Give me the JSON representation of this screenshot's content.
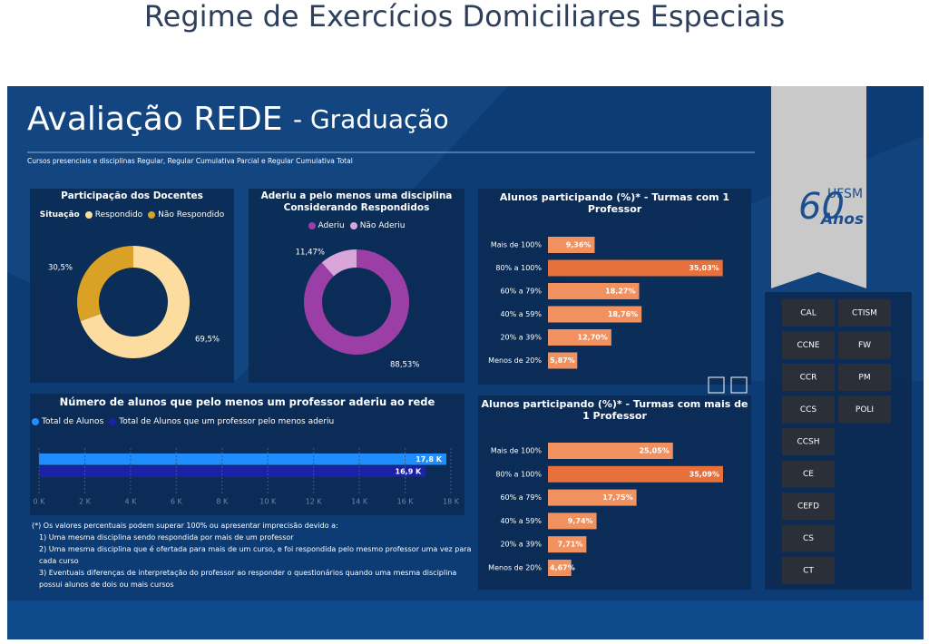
{
  "page_title": "Regime de Exercícios Domiciliares Especiais",
  "dashboard": {
    "title": "Avaliação REDE",
    "title_suffix": "- Graduação",
    "subtitle": "Cursos presenciais e disciplinas Regular, Regular Cumulativa Parcial e Regular Cumulativa Total",
    "logo_text": "UFSM",
    "logo_number": "60",
    "logo_years": "Anos"
  },
  "buttons": [
    "CAL",
    "CTISM",
    "CCNE",
    "FW",
    "CCR",
    "PM",
    "CCS",
    "POLI",
    "CCSH",
    "CE",
    "CEFD",
    "CS",
    "CT"
  ],
  "footnote": [
    "(*) Os valores percentuais podem superar 100% ou apresentar imprecisão devido a:",
    "1) Uma mesma disciplina sendo respondida por mais de um professor",
    "2) Uma mesma disciplina que é ofertada para mais de um curso, e foi respondida pelo mesmo professor uma vez para cada curso",
    "3) Eventuais diferenças de interpretação do professor ao responder o questionários quando uma mesma disciplina possui alunos de dois ou mais cursos"
  ],
  "chart_data": [
    {
      "type": "pie",
      "donut": true,
      "title": "Participação dos Docentes",
      "legend_title": "Situação",
      "categories": [
        "Respondido",
        "Não Respondido"
      ],
      "values": [
        69.5,
        30.5
      ],
      "value_labels": [
        "69,5%",
        "30,5%"
      ],
      "colors": [
        "#fddca0",
        "#d9a126"
      ]
    },
    {
      "type": "pie",
      "donut": true,
      "title": "Aderiu a pelo menos uma disciplina Considerando Respondidos",
      "categories": [
        "Aderiu",
        "Não Aderiu"
      ],
      "values": [
        88.53,
        11.47
      ],
      "value_labels": [
        "88,53%",
        "11,47%"
      ],
      "colors": [
        "#9b3ea5",
        "#d9a6da"
      ]
    },
    {
      "type": "bar",
      "orientation": "horizontal",
      "title": "Número de alunos que pelo menos um professor aderiu ao rede",
      "series": [
        {
          "name": "Total de Alunos",
          "color": "#1f8fff",
          "values": [
            17800
          ],
          "value_labels": [
            "17,8 K"
          ]
        },
        {
          "name": "Total de Alunos que um professor pelo menos aderiu",
          "color": "#1c22a8",
          "values": [
            16900
          ],
          "value_labels": [
            "16,9 K"
          ]
        }
      ],
      "xlim": [
        0,
        18000
      ],
      "xticks": [
        {
          "value": 0,
          "label": "0 K"
        },
        {
          "value": 2000,
          "label": "2 K"
        },
        {
          "value": 4000,
          "label": "4 K"
        },
        {
          "value": 6000,
          "label": "6 K"
        },
        {
          "value": 8000,
          "label": "8 K"
        },
        {
          "value": 10000,
          "label": "10 K"
        },
        {
          "value": 12000,
          "label": "12 K"
        },
        {
          "value": 14000,
          "label": "14 K"
        },
        {
          "value": 16000,
          "label": "16 K"
        },
        {
          "value": 18000,
          "label": "18 K"
        }
      ]
    },
    {
      "type": "hbar",
      "title": "Alunos participando (%)* - Turmas com 1 Professor",
      "categories": [
        "Mais de 100%",
        "80% a 100%",
        "60% a 79%",
        "40% a 59%",
        "20% a 39%",
        "Menos de 20%"
      ],
      "values": [
        9.36,
        35.03,
        18.27,
        18.76,
        12.7,
        5.87
      ],
      "value_labels": [
        "9,36%",
        "35,03%",
        "18,27%",
        "18,76%",
        "12,70%",
        "5,87%"
      ],
      "colors": [
        "#f0915f",
        "#e8703a",
        "#f0915f",
        "#f0915f",
        "#f0915f",
        "#f0915f"
      ],
      "xlim": [
        0,
        40
      ]
    },
    {
      "type": "hbar",
      "title": "Alunos participando (%)* - Turmas com mais de 1 Professor",
      "categories": [
        "Mais de 100%",
        "80% a 100%",
        "60% a 79%",
        "40% a 59%",
        "20% a 39%",
        "Menos de 20%"
      ],
      "values": [
        25.05,
        35.09,
        17.75,
        9.74,
        7.71,
        4.67
      ],
      "value_labels": [
        "25,05%",
        "35,09%",
        "17,75%",
        "9,74%",
        "7,71%",
        "4,67%"
      ],
      "colors": [
        "#f0915f",
        "#e8703a",
        "#f0915f",
        "#f0915f",
        "#f0915f",
        "#f0915f"
      ],
      "xlim": [
        0,
        40
      ]
    }
  ]
}
